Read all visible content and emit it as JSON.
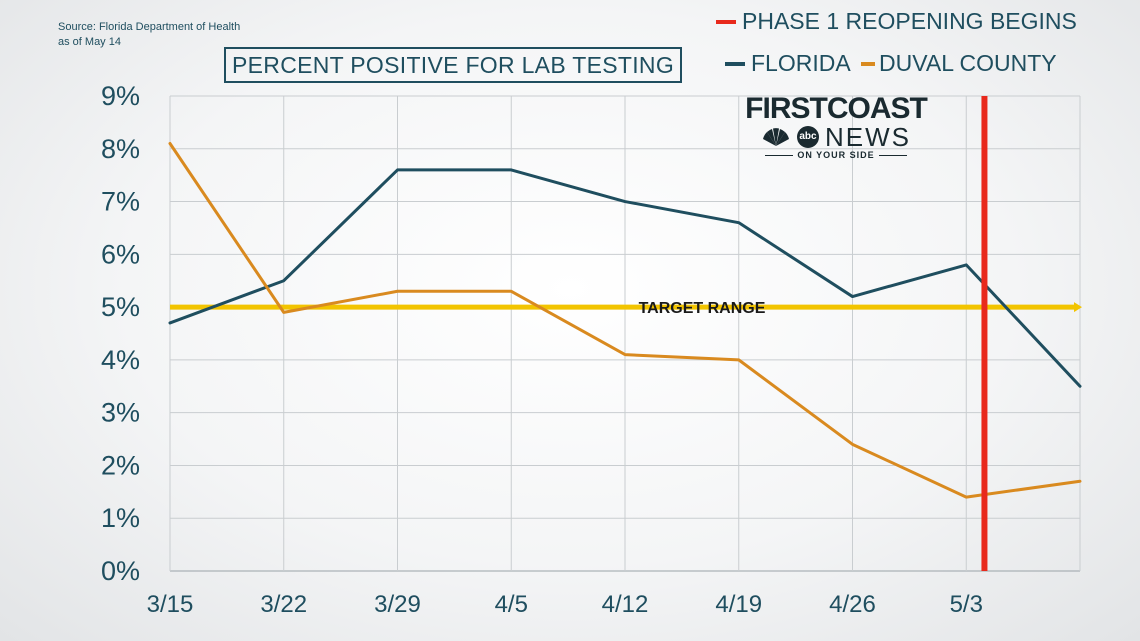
{
  "source": {
    "line1": "Source: Florida Department of Health",
    "line2": "as of May 14"
  },
  "title": "PERCENT POSITIVE FOR LAB TESTING",
  "legend": {
    "phase1": "PHASE 1 REOPENING BEGINS",
    "florida": "FLORIDA",
    "duval": "DUVAL COUNTY"
  },
  "logo": {
    "line1": "FIRSTCOAST",
    "line2": "NEWS",
    "abc": "abc",
    "tagline": "ON YOUR SIDE"
  },
  "colors": {
    "florida": "#1f4e5f",
    "duval": "#d98a1f",
    "phase1": "#e8291c",
    "target": "#f2c400",
    "grid": "#c9cdd0",
    "text": "#1f4e5f"
  },
  "chart_data": {
    "type": "line",
    "title": "PERCENT POSITIVE FOR LAB TESTING",
    "categories": [
      "3/15",
      "3/22",
      "3/29",
      "4/5",
      "4/12",
      "4/19",
      "4/26",
      "5/3",
      ""
    ],
    "y_ticks": [
      "0%",
      "1%",
      "2%",
      "3%",
      "4%",
      "5%",
      "6%",
      "7%",
      "8%",
      "9%"
    ],
    "ylim": [
      0,
      9
    ],
    "grid": true,
    "legend_position": "top-right",
    "series": [
      {
        "name": "FLORIDA",
        "values": [
          4.7,
          5.5,
          7.6,
          7.6,
          7.0,
          6.6,
          5.2,
          5.8,
          3.5
        ]
      },
      {
        "name": "DUVAL COUNTY",
        "values": [
          8.1,
          4.9,
          5.3,
          5.3,
          4.1,
          4.0,
          2.4,
          1.4,
          1.7
        ]
      }
    ],
    "target": {
      "label": "TARGET RANGE",
      "value": 5.0
    },
    "phase1_line": {
      "label": "PHASE 1 REOPENING BEGINS",
      "x_index": 7.16
    }
  }
}
